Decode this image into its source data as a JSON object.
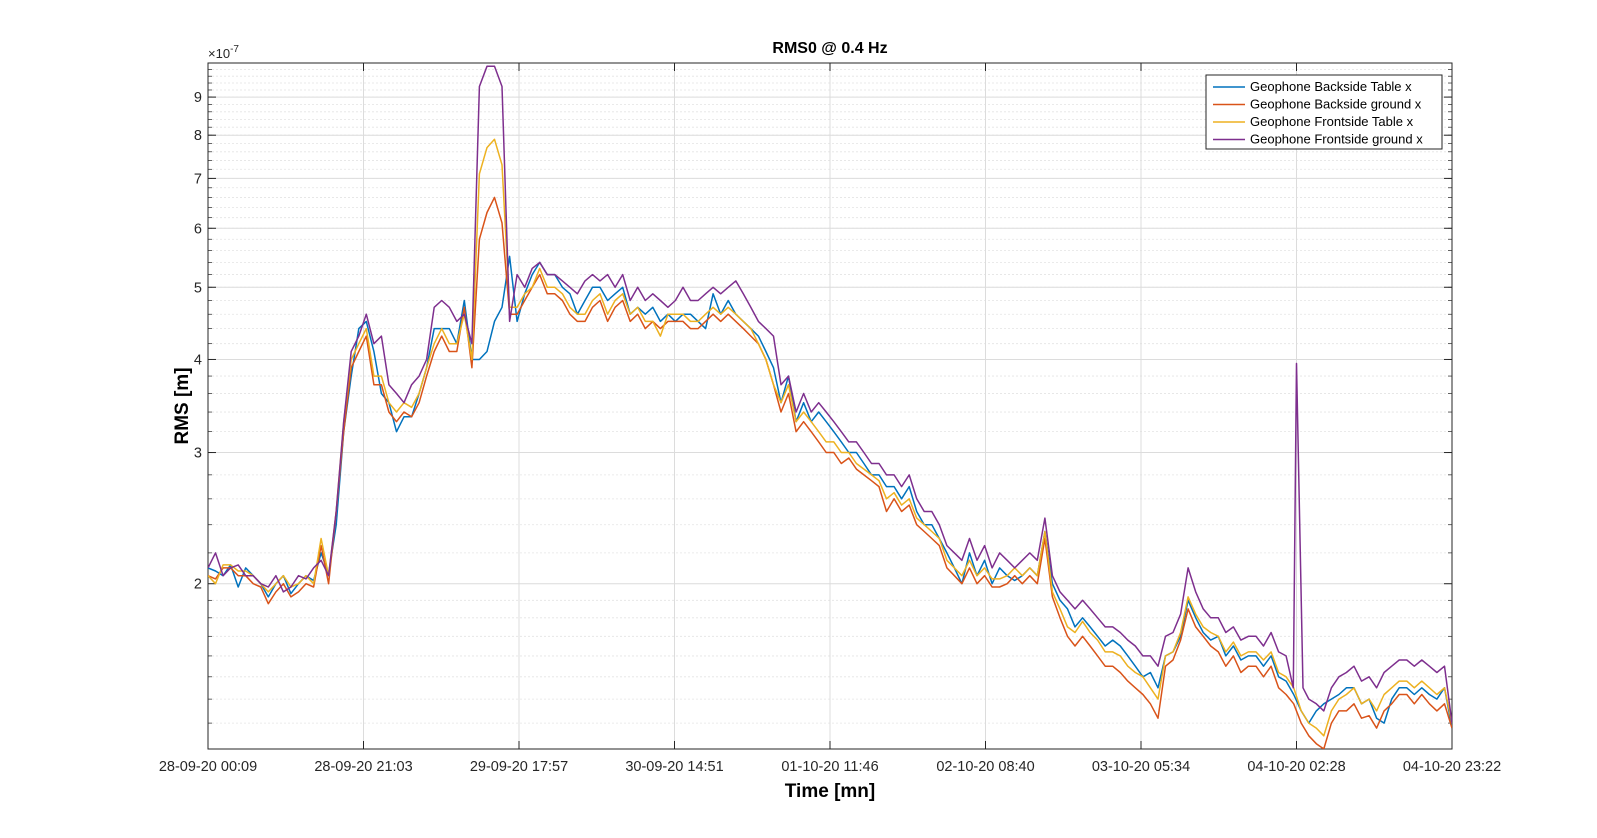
{
  "chart_data": {
    "type": "line",
    "title": "RMS0 @ 0.4 Hz",
    "xlabel": "Time [mn]",
    "ylabel": "RMS [m]",
    "y_scale": "log",
    "y_exponent_label": "×10",
    "y_exponent_power": "-7",
    "ylim": [
      1.2,
      10.0
    ],
    "xlim": [
      0,
      192
    ],
    "x_tick_labels": [
      "28-09-20 00:09",
      "28-09-20 21:03",
      "29-09-20 17:57",
      "30-09-20 14:51",
      "01-10-20 11:46",
      "02-10-20 08:40",
      "03-10-20 05:34",
      "04-10-20 02:28",
      "04-10-20 23:22"
    ],
    "y_tick_values": [
      2,
      3,
      4,
      5,
      6,
      7,
      8,
      9
    ],
    "y_tick_labels": [
      "2",
      "3",
      "4",
      "5",
      "6",
      "7",
      "8",
      "9"
    ],
    "grid": true,
    "legend_position": "top-right",
    "series": [
      {
        "name": "Geophone Backside Table x",
        "color": "#0072BD",
        "values": [
          2.1,
          2.08,
          2.05,
          2.12,
          1.98,
          2.1,
          2.05,
          2.0,
          1.92,
          2.0,
          2.05,
          1.94,
          2.0,
          2.05,
          2.02,
          2.2,
          2.06,
          2.4,
          3.2,
          3.8,
          4.4,
          4.5,
          4.1,
          3.6,
          3.5,
          3.2,
          3.35,
          3.35,
          3.6,
          3.9,
          4.4,
          4.4,
          4.4,
          4.2,
          4.8,
          4.0,
          4.0,
          4.1,
          4.5,
          4.7,
          5.5,
          4.5,
          4.9,
          5.2,
          5.4,
          5.2,
          5.2,
          5.0,
          4.9,
          4.6,
          4.8,
          5.0,
          5.0,
          4.8,
          4.9,
          5.0,
          4.6,
          4.7,
          4.6,
          4.7,
          4.5,
          4.6,
          4.5,
          4.6,
          4.6,
          4.5,
          4.4,
          4.9,
          4.6,
          4.8,
          4.6,
          4.5,
          4.4,
          4.3,
          4.1,
          3.9,
          3.5,
          3.8,
          3.3,
          3.5,
          3.3,
          3.4,
          3.3,
          3.2,
          3.1,
          3.0,
          3.0,
          2.9,
          2.8,
          2.8,
          2.7,
          2.7,
          2.6,
          2.7,
          2.5,
          2.4,
          2.4,
          2.3,
          2.2,
          2.1,
          2.0,
          2.2,
          2.05,
          2.15,
          2.0,
          2.1,
          2.05,
          2.02,
          2.05,
          2.1,
          2.05,
          2.35,
          2.0,
          1.9,
          1.85,
          1.75,
          1.8,
          1.75,
          1.7,
          1.65,
          1.68,
          1.65,
          1.6,
          1.55,
          1.5,
          1.52,
          1.45,
          1.6,
          1.62,
          1.7,
          1.9,
          1.8,
          1.72,
          1.68,
          1.7,
          1.6,
          1.65,
          1.58,
          1.6,
          1.6,
          1.55,
          1.6,
          1.5,
          1.48,
          1.42,
          1.35,
          1.3,
          1.35,
          1.38,
          1.4,
          1.42,
          1.45,
          1.45,
          1.38,
          1.4,
          1.32,
          1.3,
          1.4,
          1.45,
          1.45,
          1.42,
          1.45,
          1.42,
          1.4,
          1.45,
          1.28
        ]
      },
      {
        "name": "Geophone Backside ground x",
        "color": "#D95319",
        "values": [
          2.05,
          2.03,
          2.1,
          2.1,
          2.05,
          2.05,
          2.0,
          1.98,
          1.88,
          1.95,
          2.0,
          1.92,
          1.95,
          2.0,
          1.98,
          2.25,
          2.0,
          2.5,
          3.2,
          3.9,
          4.1,
          4.3,
          3.7,
          3.7,
          3.4,
          3.3,
          3.4,
          3.35,
          3.5,
          3.8,
          4.1,
          4.3,
          4.1,
          4.1,
          4.7,
          3.9,
          5.8,
          6.3,
          6.6,
          6.1,
          4.6,
          4.6,
          4.8,
          5.0,
          5.2,
          4.9,
          4.9,
          4.8,
          4.6,
          4.5,
          4.5,
          4.7,
          4.8,
          4.5,
          4.7,
          4.8,
          4.5,
          4.6,
          4.4,
          4.5,
          4.4,
          4.5,
          4.5,
          4.5,
          4.4,
          4.4,
          4.5,
          4.6,
          4.5,
          4.6,
          4.5,
          4.4,
          4.3,
          4.2,
          4.0,
          3.7,
          3.4,
          3.6,
          3.2,
          3.3,
          3.2,
          3.1,
          3.0,
          3.0,
          2.9,
          2.95,
          2.85,
          2.8,
          2.75,
          2.7,
          2.5,
          2.6,
          2.5,
          2.55,
          2.4,
          2.35,
          2.3,
          2.25,
          2.1,
          2.05,
          2.0,
          2.1,
          2.0,
          2.05,
          1.98,
          1.98,
          2.0,
          2.05,
          2.0,
          2.05,
          2.0,
          2.3,
          1.92,
          1.8,
          1.7,
          1.65,
          1.7,
          1.65,
          1.6,
          1.55,
          1.55,
          1.52,
          1.48,
          1.45,
          1.42,
          1.38,
          1.32,
          1.55,
          1.58,
          1.68,
          1.85,
          1.75,
          1.7,
          1.65,
          1.62,
          1.55,
          1.6,
          1.52,
          1.55,
          1.55,
          1.5,
          1.55,
          1.45,
          1.42,
          1.38,
          1.3,
          1.25,
          1.22,
          1.2,
          1.3,
          1.35,
          1.35,
          1.38,
          1.32,
          1.33,
          1.28,
          1.35,
          1.38,
          1.42,
          1.42,
          1.38,
          1.42,
          1.38,
          1.35,
          1.38,
          1.28
        ]
      },
      {
        "name": "Geophone Frontside Table x",
        "color": "#EDB120",
        "values": [
          2.05,
          2.0,
          2.12,
          2.12,
          2.08,
          2.08,
          2.05,
          2.0,
          1.95,
          2.0,
          2.05,
          1.98,
          2.0,
          2.05,
          2.0,
          2.3,
          2.05,
          2.5,
          3.3,
          4.0,
          4.2,
          4.4,
          3.8,
          3.8,
          3.5,
          3.4,
          3.5,
          3.45,
          3.6,
          3.9,
          4.2,
          4.4,
          4.2,
          4.2,
          4.6,
          4.0,
          7.1,
          7.7,
          7.9,
          7.3,
          4.7,
          4.7,
          4.9,
          5.0,
          5.3,
          5.0,
          5.0,
          4.9,
          4.7,
          4.6,
          4.6,
          4.8,
          4.9,
          4.6,
          4.8,
          4.9,
          4.6,
          4.7,
          4.5,
          4.5,
          4.3,
          4.6,
          4.6,
          4.6,
          4.5,
          4.5,
          4.6,
          4.7,
          4.6,
          4.7,
          4.6,
          4.5,
          4.4,
          4.2,
          4.0,
          3.7,
          3.5,
          3.7,
          3.3,
          3.4,
          3.3,
          3.2,
          3.1,
          3.1,
          3.0,
          3.0,
          2.9,
          2.85,
          2.8,
          2.75,
          2.6,
          2.65,
          2.55,
          2.6,
          2.45,
          2.4,
          2.35,
          2.3,
          2.15,
          2.1,
          2.05,
          2.15,
          2.05,
          2.1,
          2.03,
          2.03,
          2.05,
          2.1,
          2.05,
          2.1,
          2.05,
          2.35,
          1.95,
          1.85,
          1.75,
          1.72,
          1.78,
          1.72,
          1.68,
          1.62,
          1.62,
          1.6,
          1.55,
          1.52,
          1.5,
          1.45,
          1.4,
          1.6,
          1.62,
          1.72,
          1.92,
          1.82,
          1.75,
          1.72,
          1.7,
          1.62,
          1.67,
          1.6,
          1.62,
          1.62,
          1.58,
          1.62,
          1.52,
          1.5,
          1.45,
          1.35,
          1.3,
          1.28,
          1.25,
          1.35,
          1.4,
          1.42,
          1.45,
          1.38,
          1.4,
          1.35,
          1.42,
          1.45,
          1.48,
          1.48,
          1.45,
          1.48,
          1.45,
          1.42,
          1.45,
          1.3
        ]
      },
      {
        "name": "Geophone Frontside ground x",
        "color": "#7E2F8E",
        "values": [
          2.1,
          2.2,
          2.05,
          2.1,
          2.12,
          2.05,
          2.05,
          2.0,
          1.98,
          2.05,
          1.95,
          1.98,
          2.05,
          2.03,
          2.1,
          2.15,
          2.05,
          2.5,
          3.3,
          4.1,
          4.3,
          4.6,
          4.2,
          4.3,
          3.7,
          3.6,
          3.5,
          3.7,
          3.8,
          4.0,
          4.7,
          4.8,
          4.7,
          4.5,
          4.6,
          4.2,
          9.3,
          9.9,
          9.9,
          9.3,
          4.5,
          5.2,
          5.0,
          5.3,
          5.4,
          5.2,
          5.2,
          5.1,
          5.0,
          4.9,
          5.1,
          5.2,
          5.1,
          5.2,
          5.0,
          5.2,
          4.8,
          5.0,
          4.8,
          4.9,
          4.8,
          4.7,
          4.8,
          5.0,
          4.8,
          4.8,
          4.9,
          5.0,
          4.9,
          5.0,
          5.1,
          4.9,
          4.7,
          4.5,
          4.4,
          4.3,
          3.7,
          3.8,
          3.4,
          3.6,
          3.4,
          3.5,
          3.4,
          3.3,
          3.2,
          3.1,
          3.1,
          3.0,
          2.9,
          2.9,
          2.8,
          2.8,
          2.7,
          2.8,
          2.6,
          2.5,
          2.5,
          2.4,
          2.25,
          2.2,
          2.15,
          2.3,
          2.15,
          2.25,
          2.1,
          2.2,
          2.15,
          2.1,
          2.15,
          2.2,
          2.15,
          2.45,
          2.05,
          1.95,
          1.9,
          1.85,
          1.9,
          1.85,
          1.8,
          1.75,
          1.75,
          1.72,
          1.68,
          1.65,
          1.6,
          1.6,
          1.55,
          1.7,
          1.72,
          1.82,
          2.1,
          1.95,
          1.85,
          1.8,
          1.8,
          1.72,
          1.75,
          1.68,
          1.7,
          1.7,
          1.65,
          1.72,
          1.62,
          1.6,
          1.55,
          1.45,
          1.4,
          1.38,
          1.35,
          1.45,
          1.5,
          1.52,
          1.55,
          1.48,
          1.5,
          1.45,
          1.52,
          1.55,
          1.58,
          1.58,
          1.55,
          1.58,
          1.55,
          1.52,
          1.55,
          1.3
        ]
      }
    ],
    "spike": {
      "series_index": 3,
      "x": [
        167.5,
        168.0,
        169.0
      ],
      "values": [
        1.45,
        3.95,
        1.45
      ]
    }
  }
}
